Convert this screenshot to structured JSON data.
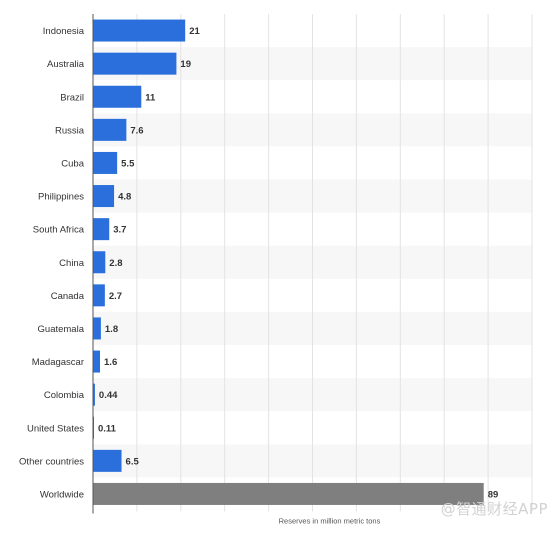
{
  "chart_data": {
    "type": "bar",
    "orientation": "horizontal",
    "categories": [
      "Indonesia",
      "Australia",
      "Brazil",
      "Russia",
      "Cuba",
      "Philippines",
      "South Africa",
      "China",
      "Canada",
      "Guatemala",
      "Madagascar",
      "Colombia",
      "United States",
      "Other countries",
      "Worldwide"
    ],
    "values": [
      21,
      19,
      11,
      7.6,
      5.5,
      4.8,
      3.7,
      2.8,
      2.7,
      1.8,
      1.6,
      0.44,
      0.11,
      6.5,
      89
    ],
    "value_labels": [
      "21",
      "19",
      "11",
      "7.6",
      "5.5",
      "4.8",
      "3.7",
      "2.8",
      "2.7",
      "1.8",
      "1.6",
      "0.44",
      "0.11",
      "6.5",
      "89"
    ],
    "title": "",
    "xlabel": "Reserves in million metric tons",
    "ylabel": "",
    "xlim": [
      0,
      100
    ],
    "grid": true,
    "colors": {
      "bar": "#2a6fdb",
      "highlight_bar": "#7f7f7f",
      "stripe": "#f7f7f7",
      "grid": "#e3e3e3",
      "axis": "#555555"
    },
    "highlight_category": "Worldwide"
  },
  "watermark": "@智通财经APP"
}
